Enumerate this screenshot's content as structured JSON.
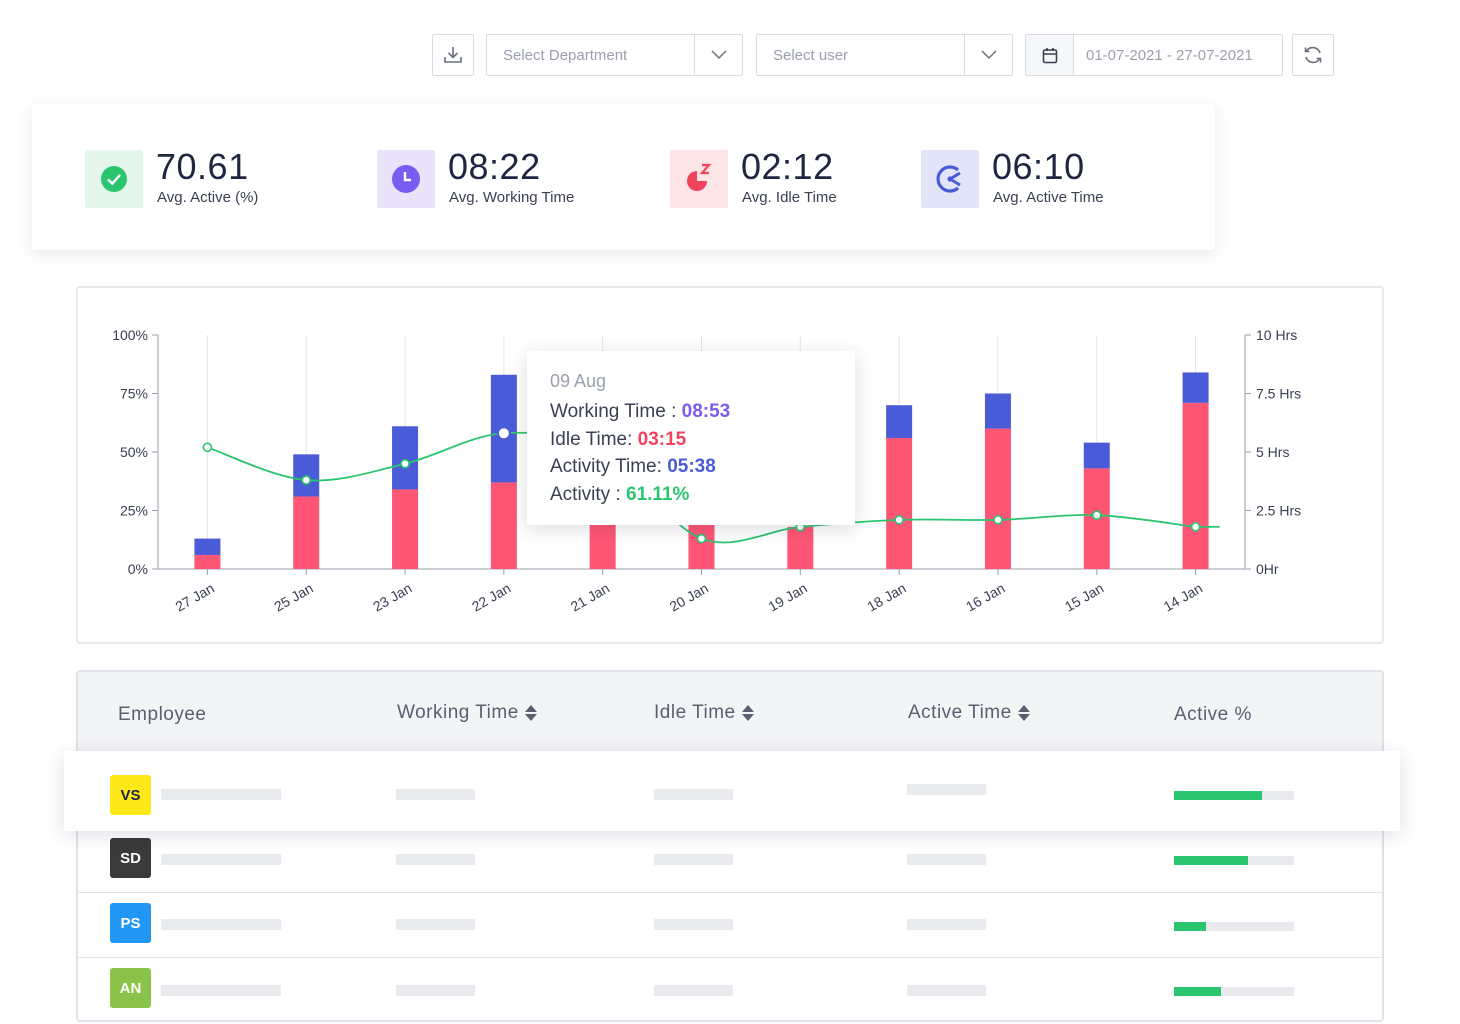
{
  "filters": {
    "department_placeholder": "Select Department",
    "user_placeholder": "Select user",
    "date_range": "01-07-2021 - 27-07-2021"
  },
  "stats": [
    {
      "value": "70.61",
      "label": "Avg. Active (%)",
      "icon": "check-circle-icon",
      "bg": "#e4f6ea",
      "color": "#2cc56f"
    },
    {
      "value": "08:22",
      "label": "Avg. Working Time",
      "icon": "clock-icon",
      "bg": "#e9e4fb",
      "color": "#7b5cf0"
    },
    {
      "value": "02:12",
      "label": "Avg. Idle Time",
      "icon": "sleep-pie-icon",
      "bg": "#fde4e6",
      "color": "#f0445d"
    },
    {
      "value": "06:10",
      "label": "Avg. Active Time",
      "icon": "activity-gauge-icon",
      "bg": "#e2e4fa",
      "color": "#4a5bd8"
    }
  ],
  "chart_data": {
    "type": "bar",
    "categories": [
      "27 Jan",
      "25 Jan",
      "23 Jan",
      "22 Jan",
      "21 Jan",
      "20 Jan",
      "19 Jan",
      "18 Jan",
      "16 Jan",
      "15 Jan",
      "14 Jan"
    ],
    "y_left_ticks": [
      "0%",
      "25%",
      "50%",
      "75%",
      "100%"
    ],
    "y_right_ticks": [
      "0Hr",
      "2.5 Hrs",
      "5 Hrs",
      "7.5 Hrs",
      "10 Hrs"
    ],
    "ylim_left": [
      0,
      100
    ],
    "ylim_right": [
      0,
      10
    ],
    "stacked": true,
    "series": [
      {
        "type": "bar",
        "color": "#ff5675",
        "values": [
          0.6,
          3.1,
          3.4,
          3.7,
          2.0,
          2.0,
          1.8,
          5.6,
          6.0,
          4.3,
          7.1
        ]
      },
      {
        "type": "bar",
        "color": "#4a5bd8",
        "values": [
          0.7,
          1.8,
          2.7,
          4.6,
          0,
          0,
          0,
          1.4,
          1.5,
          1.1,
          1.3
        ]
      },
      {
        "type": "line",
        "color": "#2cc56f",
        "values": [
          52,
          38,
          45,
          58,
          50,
          13,
          18,
          21,
          21,
          23,
          18
        ]
      }
    ],
    "grid": true
  },
  "tooltip": {
    "date": "09 Aug",
    "working_label": "Working Time :",
    "working_value": "08:53",
    "idle_label": "Idle Time:",
    "idle_value": "03:15",
    "activity_time_label": "Activity Time:",
    "activity_time_value": "05:38",
    "activity_label": "Activity :",
    "activity_value": "61.11%"
  },
  "table": {
    "headers": [
      "Employee",
      "Working Time",
      "Idle Time",
      "Active Time",
      "Active %"
    ],
    "rows": [
      {
        "initials": "VS",
        "bg": "#ffe81a",
        "fg": "#1f2640",
        "active_fraction": 0.73
      },
      {
        "initials": "SD",
        "bg": "#3a3a3a",
        "fg": "#ffffff",
        "active_fraction": 0.62
      },
      {
        "initials": "PS",
        "bg": "#2196f3",
        "fg": "#ffffff",
        "active_fraction": 0.27
      },
      {
        "initials": "AN",
        "bg": "#8bc34a",
        "fg": "#ffffff",
        "active_fraction": 0.39
      }
    ]
  }
}
